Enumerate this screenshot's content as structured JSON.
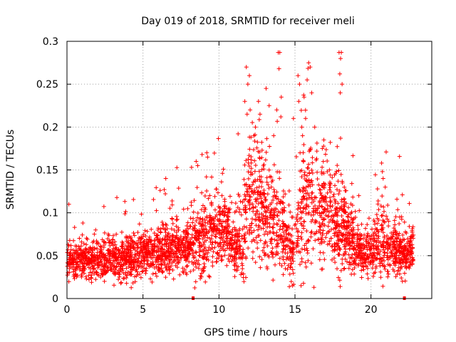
{
  "chart_data": {
    "type": "scatter",
    "title": "Day 019 of 2018, SRMTID for receiver meli",
    "xlabel": "GPS time / hours",
    "ylabel": "SRMTID / TECUs",
    "xlim": [
      0,
      24
    ],
    "ylim": [
      0,
      0.3
    ],
    "x_ticks": [
      0,
      5,
      10,
      15,
      20
    ],
    "x_tick_labels": [
      "0",
      "5",
      "10",
      "15",
      "20"
    ],
    "y_ticks": [
      0,
      0.05,
      0.1,
      0.15,
      0.2,
      0.25,
      0.3
    ],
    "y_tick_labels": [
      "0",
      "0.05",
      "0.1",
      "0.15",
      "0.2",
      "0.25",
      "0.3"
    ],
    "grid": true,
    "marker": "plus",
    "color": "#ff0000",
    "envelope": {
      "x": [
        0,
        1,
        2,
        3,
        4,
        5,
        6,
        7,
        8,
        8.5,
        9,
        9.5,
        10,
        10.5,
        11,
        11.5,
        12,
        12.5,
        13,
        13.5,
        14,
        14.5,
        15,
        15.5,
        16,
        16.5,
        17,
        17.5,
        18,
        18.5,
        19,
        19.5,
        20,
        20.5,
        21,
        21.5,
        22,
        22.5,
        22.8
      ],
      "median": [
        0.045,
        0.042,
        0.045,
        0.047,
        0.048,
        0.052,
        0.055,
        0.057,
        0.062,
        0.066,
        0.072,
        0.078,
        0.082,
        0.075,
        0.06,
        0.068,
        0.12,
        0.11,
        0.1,
        0.09,
        0.085,
        0.065,
        0.06,
        0.1,
        0.12,
        0.1,
        0.11,
        0.085,
        0.09,
        0.075,
        0.06,
        0.055,
        0.057,
        0.065,
        0.062,
        0.058,
        0.056,
        0.055,
        0.055
      ],
      "spread": [
        0.012,
        0.012,
        0.014,
        0.014,
        0.014,
        0.015,
        0.016,
        0.017,
        0.02,
        0.025,
        0.028,
        0.026,
        0.025,
        0.022,
        0.02,
        0.03,
        0.045,
        0.04,
        0.035,
        0.035,
        0.035,
        0.025,
        0.025,
        0.04,
        0.045,
        0.035,
        0.035,
        0.03,
        0.035,
        0.025,
        0.018,
        0.016,
        0.018,
        0.025,
        0.02,
        0.018,
        0.016,
        0.015,
        0.014
      ]
    },
    "n_points": 3200,
    "outliers": [
      {
        "x": 11.8,
        "y": 0.27
      },
      {
        "x": 11.9,
        "y": 0.25
      },
      {
        "x": 12.0,
        "y": 0.26
      },
      {
        "x": 11.7,
        "y": 0.23
      },
      {
        "x": 11.85,
        "y": 0.215
      },
      {
        "x": 12.05,
        "y": 0.22
      },
      {
        "x": 12.6,
        "y": 0.23
      },
      {
        "x": 12.7,
        "y": 0.215
      },
      {
        "x": 13.1,
        "y": 0.245
      },
      {
        "x": 13.3,
        "y": 0.225
      },
      {
        "x": 13.9,
        "y": 0.287
      },
      {
        "x": 14.0,
        "y": 0.287
      },
      {
        "x": 13.95,
        "y": 0.268
      },
      {
        "x": 14.1,
        "y": 0.235
      },
      {
        "x": 13.8,
        "y": 0.22
      },
      {
        "x": 15.2,
        "y": 0.26
      },
      {
        "x": 15.3,
        "y": 0.25
      },
      {
        "x": 15.25,
        "y": 0.23
      },
      {
        "x": 15.6,
        "y": 0.235
      },
      {
        "x": 15.9,
        "y": 0.275
      },
      {
        "x": 16.0,
        "y": 0.27
      },
      {
        "x": 15.8,
        "y": 0.255
      },
      {
        "x": 16.1,
        "y": 0.24
      },
      {
        "x": 15.7,
        "y": 0.21
      },
      {
        "x": 16.9,
        "y": 0.185
      },
      {
        "x": 16.8,
        "y": 0.175
      },
      {
        "x": 17.9,
        "y": 0.287
      },
      {
        "x": 18.05,
        "y": 0.287
      },
      {
        "x": 18.0,
        "y": 0.28
      },
      {
        "x": 17.95,
        "y": 0.262
      },
      {
        "x": 18.1,
        "y": 0.25
      },
      {
        "x": 17.98,
        "y": 0.24
      },
      {
        "x": 18.0,
        "y": 0.187
      },
      {
        "x": 9.2,
        "y": 0.17
      },
      {
        "x": 9.25,
        "y": 0.165
      },
      {
        "x": 8.5,
        "y": 0.16
      },
      {
        "x": 8.6,
        "y": 0.155
      },
      {
        "x": 6.5,
        "y": 0.14
      },
      {
        "x": 6.4,
        "y": 0.127
      },
      {
        "x": 20.7,
        "y": 0.158
      },
      {
        "x": 20.75,
        "y": 0.148
      },
      {
        "x": 20.8,
        "y": 0.14
      },
      {
        "x": 19.2,
        "y": 0.12
      },
      {
        "x": 12.3,
        "y": 0.19
      },
      {
        "x": 12.4,
        "y": 0.2
      },
      {
        "x": 13.6,
        "y": 0.19
      },
      {
        "x": 15.5,
        "y": 0.19
      },
      {
        "x": 15.45,
        "y": 0.2
      },
      {
        "x": 16.3,
        "y": 0.2
      },
      {
        "x": 14.9,
        "y": 0.21
      }
    ],
    "lows": [
      {
        "x": 8.3,
        "y": 0.0
      },
      {
        "x": 22.2,
        "y": 0.0
      }
    ]
  }
}
